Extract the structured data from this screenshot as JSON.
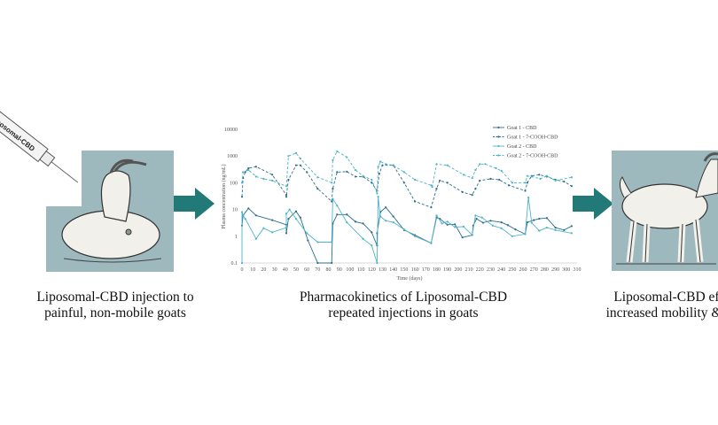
{
  "left_panel": {
    "syringe_label": "Liposomal-CBD",
    "caption_line1": "Liposomal-CBD injection to",
    "caption_line2": "painful, non-mobile goats"
  },
  "middle_panel": {
    "caption_line1": "Pharmacokinetics of Liposomal-CBD",
    "caption_line2": "repeated injections in goats"
  },
  "right_panel": {
    "caption_line1": "Liposomal-CBD effic",
    "caption_line2": "increased mobility & we"
  },
  "colors": {
    "panel_bg": "#9db9bd",
    "arrow": "#217a78",
    "series_dark": "#2b6d8c",
    "series_light": "#4db4c9"
  },
  "chart_data": {
    "type": "line",
    "title": "",
    "xlabel": "Time (days)",
    "ylabel": "Plasma concentration (ng/mL)",
    "yscale": "log",
    "ylim": [
      0.1,
      10000
    ],
    "xlim": [
      0,
      310
    ],
    "y_ticks": [
      "0.1",
      "1",
      "10",
      "100",
      "1000",
      "10000"
    ],
    "x_ticks": [
      "0",
      "10",
      "20",
      "30",
      "40",
      "50",
      "60",
      "70",
      "80",
      "90",
      "100",
      "110",
      "120",
      "130",
      "140",
      "150",
      "160",
      "170",
      "180",
      "190",
      "200",
      "210",
      "220",
      "230",
      "240",
      "250",
      "260",
      "270",
      "280",
      "290",
      "300",
      "310"
    ],
    "legend_position": "top-right",
    "series": [
      {
        "name": "Goat 1 - CBD",
        "style": "solid",
        "color": "#2b6d8c",
        "points": [
          [
            0,
            2.5
          ],
          [
            1,
            6
          ],
          [
            6,
            11
          ],
          [
            13,
            6
          ],
          [
            28,
            4
          ],
          [
            41,
            2.7
          ],
          [
            41,
            1.3
          ],
          [
            43,
            4.5
          ],
          [
            50,
            8.5
          ],
          [
            54,
            5
          ],
          [
            61,
            0.7
          ],
          [
            70,
            0.1
          ],
          [
            83,
            0.1
          ],
          [
            84,
            3
          ],
          [
            88,
            6.5
          ],
          [
            97,
            6.5
          ],
          [
            105,
            3.5
          ],
          [
            112,
            3
          ],
          [
            120,
            1.4
          ],
          [
            125,
            0.45
          ],
          [
            125,
            1.3
          ],
          [
            128,
            8
          ],
          [
            133,
            12
          ],
          [
            140,
            5.5
          ],
          [
            150,
            1.7
          ],
          [
            160,
            1.1
          ],
          [
            175,
            0.55
          ],
          [
            180,
            5
          ],
          [
            183,
            4.5
          ],
          [
            190,
            2.7
          ],
          [
            197,
            2.8
          ],
          [
            204,
            0.9
          ],
          [
            213,
            1.1
          ],
          [
            214,
            2.5
          ],
          [
            217,
            4.5
          ],
          [
            223,
            3.2
          ],
          [
            230,
            3.8
          ],
          [
            240,
            3.3
          ],
          [
            246,
            2.6
          ],
          [
            253,
            1.8
          ],
          [
            262,
            1.2
          ],
          [
            264,
            3.3
          ],
          [
            270,
            4
          ],
          [
            275,
            4.5
          ],
          [
            282,
            4.8
          ],
          [
            290,
            2.1
          ],
          [
            298,
            1.7
          ],
          [
            305,
            2.4
          ]
        ]
      },
      {
        "name": "Goat 1 - 7-COOH-CBD",
        "style": "dashed",
        "color": "#2b6d8c",
        "points": [
          [
            0,
            30
          ],
          [
            1,
            150
          ],
          [
            3,
            250
          ],
          [
            6,
            350
          ],
          [
            13,
            400
          ],
          [
            28,
            200
          ],
          [
            41,
            35
          ],
          [
            41,
            30
          ],
          [
            43,
            130
          ],
          [
            50,
            450
          ],
          [
            54,
            450
          ],
          [
            60,
            250
          ],
          [
            70,
            60
          ],
          [
            83,
            20
          ],
          [
            84,
            60
          ],
          [
            88,
            250
          ],
          [
            97,
            260
          ],
          [
            105,
            170
          ],
          [
            112,
            170
          ],
          [
            120,
            100
          ],
          [
            125,
            50
          ],
          [
            127,
            220
          ],
          [
            130,
            450
          ],
          [
            140,
            450
          ],
          [
            150,
            100
          ],
          [
            160,
            20
          ],
          [
            175,
            12
          ],
          [
            180,
            60
          ],
          [
            183,
            120
          ],
          [
            190,
            100
          ],
          [
            204,
            45
          ],
          [
            213,
            35
          ],
          [
            216,
            60
          ],
          [
            220,
            120
          ],
          [
            230,
            140
          ],
          [
            238,
            130
          ],
          [
            247,
            80
          ],
          [
            262,
            50
          ],
          [
            264,
            100
          ],
          [
            268,
            180
          ],
          [
            275,
            200
          ],
          [
            282,
            170
          ],
          [
            290,
            130
          ],
          [
            298,
            110
          ],
          [
            305,
            75
          ]
        ]
      },
      {
        "name": "Goat 2 - CBD",
        "style": "solid",
        "color": "#4db4c9",
        "points": [
          [
            0,
            0.1
          ],
          [
            0,
            8
          ],
          [
            1,
            6
          ],
          [
            3,
            4.5
          ],
          [
            13,
            0.8
          ],
          [
            20,
            2
          ],
          [
            28,
            1.4
          ],
          [
            41,
            2.1
          ],
          [
            41,
            7
          ],
          [
            44,
            10
          ],
          [
            50,
            4.5
          ],
          [
            60,
            1.3
          ],
          [
            70,
            0.6
          ],
          [
            83,
            0.6
          ],
          [
            84,
            25
          ],
          [
            88,
            14
          ],
          [
            97,
            3.3
          ],
          [
            112,
            0.8
          ],
          [
            120,
            0.45
          ],
          [
            125,
            0.1
          ],
          [
            126,
            30
          ],
          [
            128,
            5.5
          ],
          [
            133,
            3.8
          ],
          [
            140,
            3.3
          ],
          [
            150,
            1.8
          ],
          [
            160,
            1
          ],
          [
            175,
            0.55
          ],
          [
            180,
            6
          ],
          [
            185,
            3
          ],
          [
            190,
            3.5
          ],
          [
            197,
            2.2
          ],
          [
            205,
            2.3
          ],
          [
            213,
            1.1
          ],
          [
            216,
            6
          ],
          [
            222,
            5
          ],
          [
            232,
            2.5
          ],
          [
            240,
            2
          ],
          [
            250,
            1
          ],
          [
            262,
            1.2
          ],
          [
            265,
            28
          ],
          [
            268,
            3.2
          ],
          [
            275,
            1.6
          ],
          [
            282,
            2.1
          ],
          [
            290,
            1.7
          ],
          [
            305,
            1.3
          ]
        ]
      },
      {
        "name": "Goat 2 - 7-COOH-CBD",
        "style": "dashed",
        "color": "#4db4c9",
        "points": [
          [
            0,
            100
          ],
          [
            1,
            250
          ],
          [
            6,
            300
          ],
          [
            13,
            170
          ],
          [
            20,
            140
          ],
          [
            28,
            120
          ],
          [
            41,
            75
          ],
          [
            43,
            1000
          ],
          [
            50,
            1300
          ],
          [
            54,
            800
          ],
          [
            70,
            160
          ],
          [
            83,
            100
          ],
          [
            84,
            700
          ],
          [
            88,
            1500
          ],
          [
            97,
            900
          ],
          [
            105,
            300
          ],
          [
            112,
            180
          ],
          [
            120,
            130
          ],
          [
            125,
            40
          ],
          [
            126,
            400
          ],
          [
            128,
            620
          ],
          [
            133,
            500
          ],
          [
            140,
            450
          ],
          [
            150,
            250
          ],
          [
            160,
            130
          ],
          [
            175,
            80
          ],
          [
            176,
            70
          ],
          [
            180,
            500
          ],
          [
            190,
            450
          ],
          [
            205,
            200
          ],
          [
            213,
            150
          ],
          [
            216,
            300
          ],
          [
            220,
            500
          ],
          [
            225,
            500
          ],
          [
            235,
            350
          ],
          [
            240,
            280
          ],
          [
            250,
            100
          ],
          [
            262,
            100
          ],
          [
            264,
            180
          ],
          [
            268,
            170
          ],
          [
            276,
            140
          ],
          [
            282,
            180
          ],
          [
            290,
            120
          ],
          [
            305,
            160
          ]
        ]
      }
    ]
  }
}
